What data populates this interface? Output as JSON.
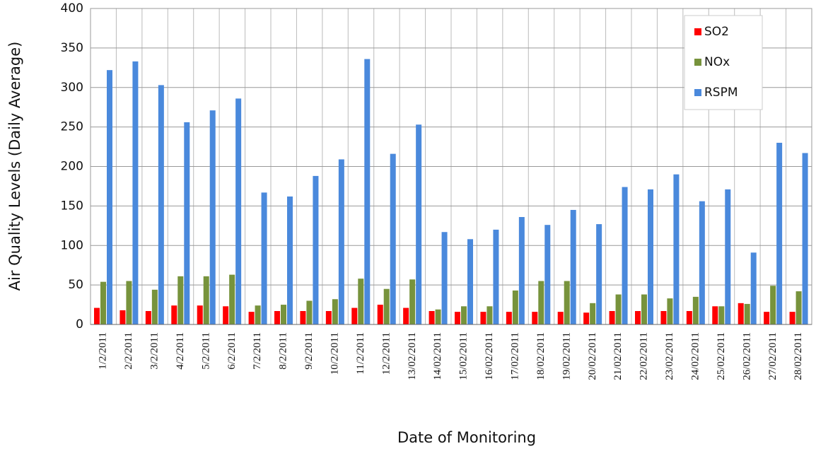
{
  "chart_data": {
    "type": "bar",
    "y_label": "Air Quality Levels (Daily Average)",
    "x_label": "Date of Monitoring",
    "categories": [
      "1/2/2011",
      "2/2/2011",
      "3/2/2011",
      "4/2/2011",
      "5/2/2011",
      "6/2/2011",
      "7/2/2011",
      "8/2/2011",
      "9/2/2011",
      "10/2/2011",
      "11/2/2011",
      "12/2/2011",
      "13/02/2011",
      "14/02/2011",
      "15/02/2011",
      "16/02/2011",
      "17/02/2011",
      "18/02/2011",
      "19/02/2011",
      "20/02/2011",
      "21/02/2011",
      "22/02/2011",
      "23/02/2011",
      "24/02/2011",
      "25/02/2011",
      "26/02/2011",
      "27/02/2011",
      "28/02/2011"
    ],
    "series": [
      {
        "name": "SO2",
        "color": "#ff0000",
        "values": [
          21,
          18,
          17,
          24,
          24,
          23,
          16,
          17,
          17,
          17,
          21,
          25,
          21,
          17,
          16,
          16,
          16,
          16,
          16,
          15,
          17,
          17,
          17,
          17,
          23,
          27,
          16,
          16
        ]
      },
      {
        "name": "NOx",
        "color": "#77933c",
        "values": [
          54,
          55,
          44,
          61,
          61,
          63,
          24,
          25,
          30,
          32,
          58,
          45,
          57,
          19,
          23,
          23,
          43,
          55,
          55,
          27,
          38,
          38,
          33,
          35,
          23,
          26,
          49,
          42
        ]
      },
      {
        "name": "RSPM",
        "color": "#4a89dc",
        "values": [
          322,
          333,
          303,
          256,
          271,
          286,
          167,
          162,
          188,
          209,
          336,
          216,
          253,
          117,
          108,
          120,
          136,
          126,
          145,
          127,
          174,
          171,
          190,
          156,
          171,
          91,
          230,
          217
        ]
      }
    ],
    "ylim": [
      0,
      400
    ],
    "yticks": [
      0,
      50,
      100,
      150,
      200,
      250,
      300,
      350,
      400
    ],
    "grid": true,
    "legend": "upper right"
  }
}
